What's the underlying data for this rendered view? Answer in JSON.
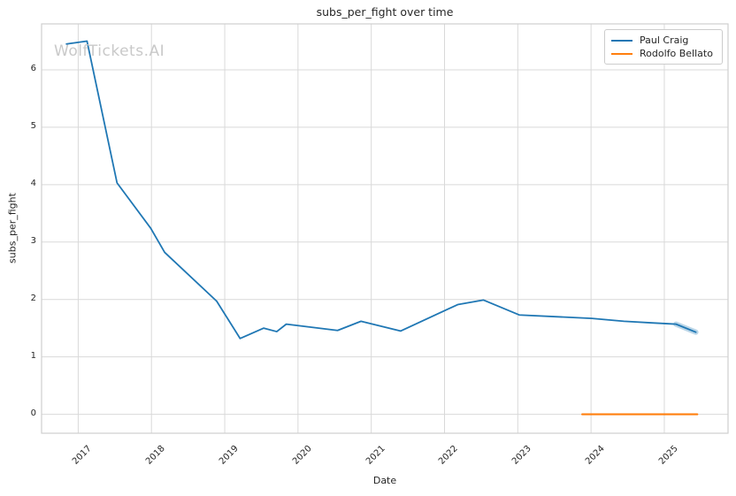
{
  "title": "subs_per_fight over time",
  "watermark": "WolfTickets.AI",
  "axes": {
    "x_label": "Date",
    "y_label": "subs_per_fight"
  },
  "legend": {
    "items": [
      {
        "label": "Paul Craig",
        "color": "#1f77b4"
      },
      {
        "label": "Rodolfo Bellato",
        "color": "#ff7f0e"
      }
    ]
  },
  "chart_data": {
    "type": "line",
    "title": "subs_per_fight over time",
    "xlabel": "Date",
    "ylabel": "subs_per_fight",
    "xlim": [
      2016.5,
      2025.87
    ],
    "ylim": [
      -0.33,
      6.8
    ],
    "x_ticks": [
      2017,
      2018,
      2019,
      2020,
      2021,
      2022,
      2023,
      2024,
      2025
    ],
    "y_ticks": [
      0,
      1,
      2,
      3,
      4,
      5,
      6
    ],
    "grid": true,
    "grid_color": "#d9d9d9",
    "spine_color": "#cfcfcf",
    "legend_position": "upper right",
    "series": [
      {
        "name": "Paul Craig",
        "color": "#1f77b4",
        "line_width": 1.8,
        "end_highlight": true,
        "x": [
          2016.84,
          2017.12,
          2017.53,
          2017.99,
          2018.18,
          2018.89,
          2019.21,
          2019.53,
          2019.71,
          2019.84,
          2020.54,
          2020.86,
          2021.4,
          2022.18,
          2022.53,
          2023.02,
          2024.01,
          2024.45,
          2024.86,
          2025.16,
          2025.43
        ],
        "y": [
          6.45,
          6.5,
          4.03,
          3.24,
          2.82,
          1.97,
          1.32,
          1.5,
          1.44,
          1.57,
          1.46,
          1.62,
          1.45,
          1.91,
          1.99,
          1.73,
          1.67,
          1.62,
          1.59,
          1.57,
          1.43
        ]
      },
      {
        "name": "Rodolfo Bellato",
        "color": "#ff7f0e",
        "line_width": 2.2,
        "end_highlight": false,
        "x": [
          2023.88,
          2025.45
        ],
        "y": [
          0.0,
          0.0
        ]
      }
    ]
  }
}
